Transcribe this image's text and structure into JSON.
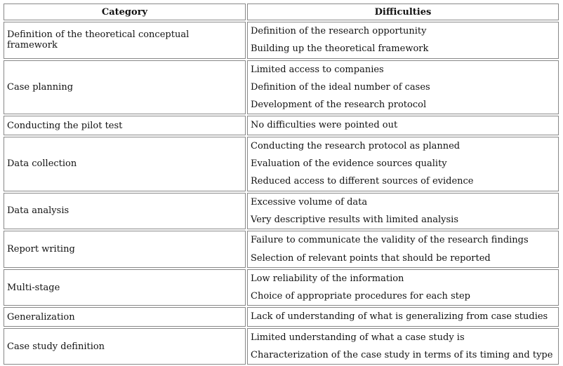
{
  "table": {
    "header": [
      "Category",
      "Difficulties"
    ],
    "rows": [
      {
        "category": "Definition of the theoretical conceptual framework",
        "difficulties": [
          "Definition of the research opportunity",
          "Building up the theoretical framework"
        ]
      },
      {
        "category": "Case planning",
        "difficulties": [
          "Limited access to companies",
          "Definition of the ideal number of cases",
          "Development of the research protocol"
        ]
      },
      {
        "category": "Conducting the pilot test",
        "difficulties": [
          "No difficulties were pointed out"
        ]
      },
      {
        "category": "Data collection",
        "difficulties": [
          "Conducting the research protocol as planned",
          "Evaluation of the evidence sources quality",
          "Reduced access to different sources of evidence"
        ]
      },
      {
        "category": "Data analysis",
        "difficulties": [
          "Excessive volume of data",
          "Very descriptive results with limited analysis"
        ]
      },
      {
        "category": "Report writing",
        "difficulties": [
          "Failure to communicate the validity of the research findings",
          "Selection of relevant points that should be reported"
        ]
      },
      {
        "category": "Multi-stage",
        "difficulties": [
          "Low reliability of the information",
          "Choice of appropriate procedures for each step"
        ]
      },
      {
        "category": "Generalization",
        "difficulties": [
          "Lack of understanding of what is generalizing from case studies"
        ]
      },
      {
        "category": "Case study definition",
        "difficulties": [
          "Limited understanding of what a case study is",
          "Characterization of the case study in terms of its timing and type"
        ]
      }
    ]
  }
}
